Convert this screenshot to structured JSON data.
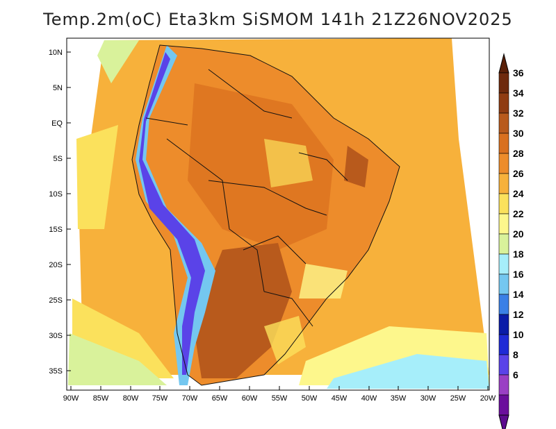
{
  "title": "Temp.2m(oC) Eta3km SiSMOM 141h 21Z26NOV2025",
  "lat_labels": [
    "10N",
    "5N",
    "EQ",
    "5S",
    "10S",
    "15S",
    "20S",
    "25S",
    "30S",
    "35S"
  ],
  "lon_labels": [
    "90W",
    "85W",
    "80W",
    "75W",
    "70W",
    "65W",
    "60W",
    "55W",
    "50W",
    "45W",
    "40W",
    "35W",
    "30W",
    "25W",
    "20W"
  ],
  "colorbar": {
    "levels": [
      "36",
      "34",
      "32",
      "30",
      "28",
      "26",
      "24",
      "22",
      "20",
      "18",
      "16",
      "14",
      "12",
      "10",
      "8",
      "6"
    ],
    "colors": [
      "#6e2a0d",
      "#8f3c12",
      "#b85a1c",
      "#d9701f",
      "#ed8c2b",
      "#f7b13b",
      "#fbe15c",
      "#fdf78c",
      "#d9f29b",
      "#a6eefa",
      "#74c7f0",
      "#3a80e6",
      "#0a1ca8",
      "#1f2bd6",
      "#5a43e8",
      "#9a3fc4",
      "#6b0e9c"
    ],
    "top_arrow_color": "#5a2008",
    "bottom_arrow_color": "#5c0a8e"
  },
  "palette": {
    "ocean_warm": "#f7b13b",
    "ocean_mild": "#fbe15c",
    "ocean_cool": "#fdf78c",
    "land_hot": "#ed8c2b",
    "land_hotter": "#d9701f",
    "chaco": "#b85a1c",
    "andes_cold": "#74c7f0",
    "andes_colder": "#5a43e8"
  }
}
